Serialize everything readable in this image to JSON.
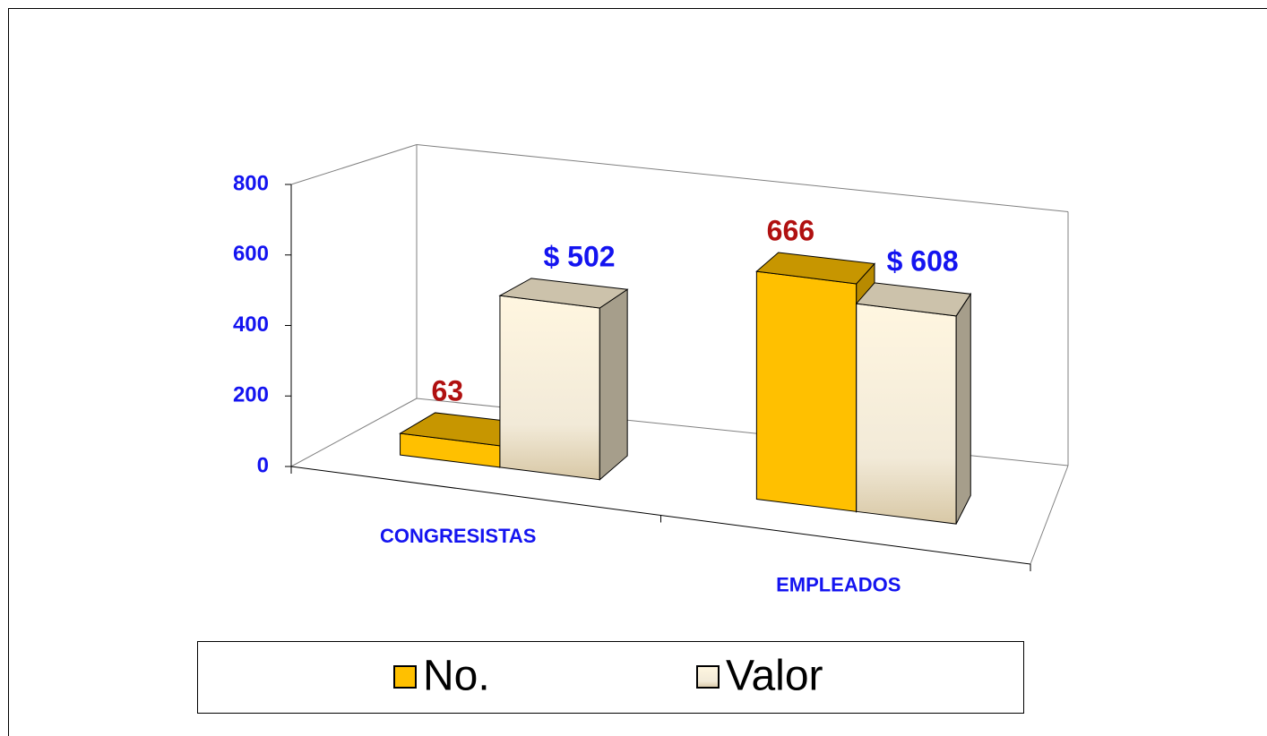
{
  "chart_data": {
    "type": "bar3d",
    "categories": [
      "CONGRESISTAS",
      "EMPLEADOS"
    ],
    "series": [
      {
        "name": "No.",
        "color": "#FFC000",
        "label_color": "#B01010",
        "values": [
          63,
          666
        ]
      },
      {
        "name": "Valor",
        "color": "#FFF3D6",
        "label_color": "#1414F0",
        "values": [
          502,
          608
        ],
        "value_labels": [
          "$ 502",
          "$ 608"
        ]
      }
    ],
    "ylim": [
      0,
      800
    ],
    "yticks": [
      0,
      200,
      400,
      600,
      800
    ],
    "axis_color": "#1414F0",
    "legend": "bottom"
  }
}
